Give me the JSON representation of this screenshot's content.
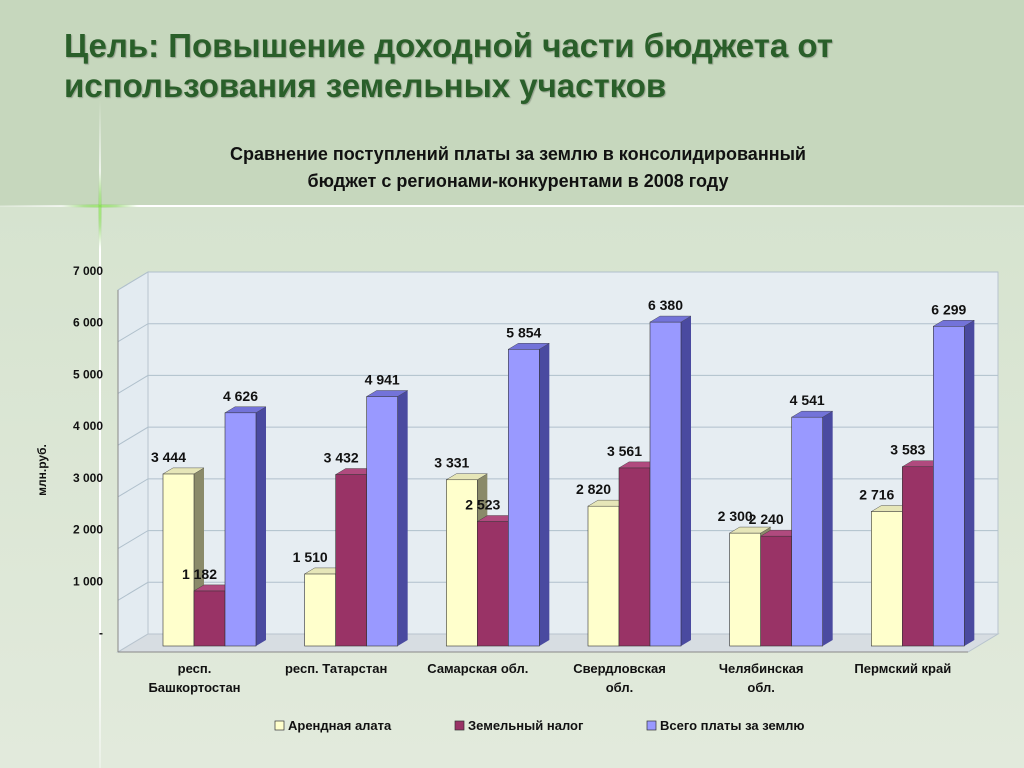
{
  "slide": {
    "title": "Цель: Повышение доходной части бюджета от использования земельных участков"
  },
  "chart_data": {
    "type": "bar",
    "style": "3d-clustered-column",
    "title_lines": [
      "Сравнение поступлений платы за землю в консолидированный",
      "бюджет с регионами-конкурентами в 2008 году"
    ],
    "ylabel": "млн.руб.",
    "ylim": [
      0,
      7000
    ],
    "yticks": [
      0,
      1000,
      2000,
      3000,
      4000,
      5000,
      6000,
      7000
    ],
    "ytick_labels": [
      "-",
      "1 000",
      "2 000",
      "3 000",
      "4 000",
      "5 000",
      "6 000",
      "7 000"
    ],
    "grid": true,
    "legend_position": "bottom",
    "categories": [
      [
        "респ.",
        "Башкортостан"
      ],
      [
        "респ. Татарстан"
      ],
      [
        "Самарская обл."
      ],
      [
        "Свердловская",
        "обл."
      ],
      [
        "Челябинская",
        "обл."
      ],
      [
        "Пермский край"
      ]
    ],
    "series": [
      {
        "name": "Арендная алата",
        "color": "#ffffcc",
        "side_color": "#8a8a6a",
        "top_color": "#e6e6b8",
        "values": [
          3444,
          1510,
          3331,
          2820,
          2300,
          2716
        ],
        "labels": [
          "3 444",
          "1 510",
          "3 331",
          "2 820",
          "2 300",
          "2 716"
        ]
      },
      {
        "name": "Земельный налог",
        "color": "#993366",
        "side_color": "#5e1e3e",
        "top_color": "#b04a7e",
        "values": [
          1182,
          3432,
          2523,
          3561,
          2240,
          3583
        ],
        "labels": [
          "1 182",
          "3 432",
          "2 523",
          "3 561",
          "2 240",
          "3 583"
        ]
      },
      {
        "name": "Всего платы за землю",
        "color": "#9999ff",
        "side_color": "#4a4aa0",
        "top_color": "#7373d9",
        "values": [
          4626,
          4941,
          5854,
          6380,
          4541,
          6299
        ],
        "labels": [
          "4 626",
          "4 941",
          "5 854",
          "6 380",
          "4 541",
          "6 299"
        ]
      }
    ]
  }
}
